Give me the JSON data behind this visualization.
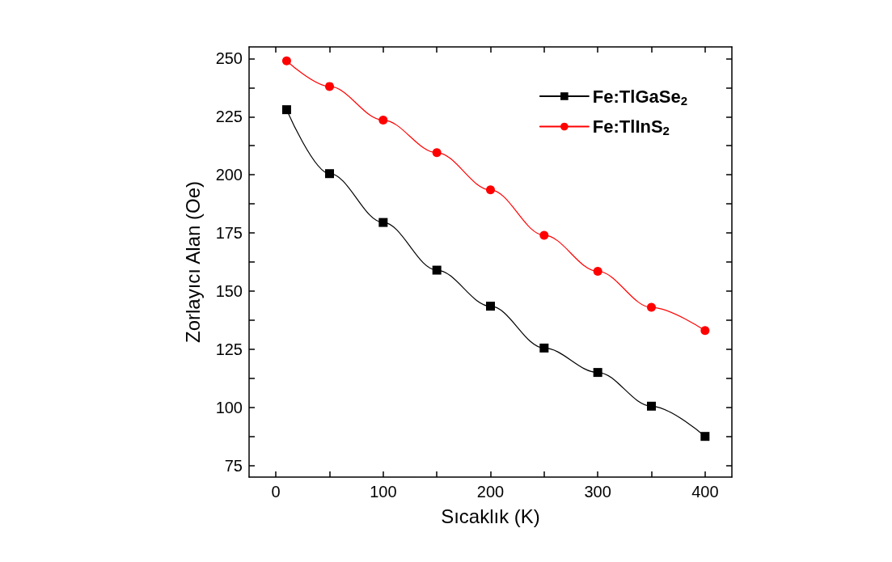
{
  "chart_data": {
    "type": "line",
    "xlabel": "Sıcaklık (K)",
    "ylabel": "Zorlayıcı Alan (Oe)",
    "x": [
      10,
      50,
      100,
      150,
      200,
      250,
      300,
      350,
      400
    ],
    "series": [
      {
        "name": "Fe:TlGaSe$_{2}$",
        "color": "#000000",
        "marker": "square",
        "values": [
          228,
          200.5,
          179.5,
          159,
          143.5,
          125.5,
          115,
          100.5,
          87.5
        ]
      },
      {
        "name": "Fe:TlInS$_{2}$",
        "color": "#ff0000",
        "marker": "circle",
        "values": [
          249,
          238,
          223.5,
          209.5,
          193.5,
          174,
          158.5,
          143,
          133
        ]
      }
    ],
    "xlim": [
      -25,
      425
    ],
    "xticks": [
      0,
      {
        "value": 50,
        "label": null
      },
      100,
      {
        "value": 150,
        "label": null
      },
      200,
      {
        "value": 250,
        "label": null
      },
      300,
      {
        "value": 350,
        "label": null
      },
      400
    ],
    "ylim": [
      70,
      255
    ],
    "yticks": [
      75,
      {
        "value": 87.5,
        "label": null
      },
      100,
      {
        "value": 112.5,
        "label": null
      },
      125,
      {
        "value": 137.5,
        "label": null
      },
      150,
      {
        "value": 162.5,
        "label": null
      },
      175,
      {
        "value": 187.5,
        "label": null
      },
      200,
      {
        "value": 212.5,
        "label": null
      },
      225,
      {
        "value": 237.5,
        "label": null
      },
      250
    ],
    "grid": false,
    "legend": "top right",
    "line_style": "solid"
  }
}
